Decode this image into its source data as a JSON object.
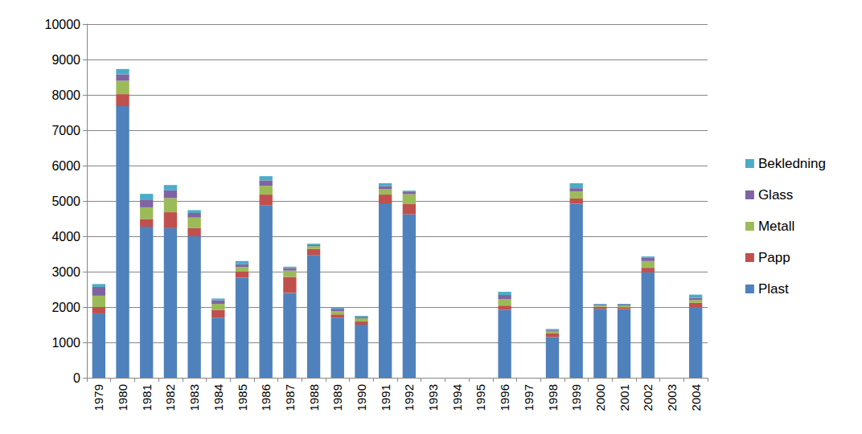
{
  "chart_data": {
    "type": "bar",
    "stacked": true,
    "grid": true,
    "legend": "right",
    "categories": [
      "1979",
      "1980",
      "1981",
      "1982",
      "1983",
      "1984",
      "1985",
      "1986",
      "1987",
      "1988",
      "1989",
      "1990",
      "1991",
      "1992",
      "1993",
      "1994",
      "1995",
      "1996",
      "1997",
      "1998",
      "1999",
      "2000",
      "2001",
      "2002",
      "2003",
      "2004"
    ],
    "ylim": [
      0,
      10000
    ],
    "yticks": [
      0,
      1000,
      2000,
      3000,
      4000,
      5000,
      6000,
      7000,
      8000,
      9000,
      10000
    ],
    "series": [
      {
        "name": "Plast",
        "color": "#4f81bd",
        "values": [
          1820,
          7680,
          4270,
          4230,
          4000,
          1700,
          2830,
          4880,
          2400,
          3470,
          1700,
          1500,
          4930,
          4620,
          null,
          null,
          null,
          1920,
          null,
          1150,
          4920,
          1950,
          1940,
          2980,
          null,
          1990
        ]
      },
      {
        "name": "Papp",
        "color": "#c0504d",
        "values": [
          180,
          340,
          220,
          450,
          230,
          220,
          170,
          300,
          450,
          170,
          90,
          90,
          250,
          290,
          null,
          null,
          null,
          120,
          null,
          100,
          150,
          60,
          50,
          130,
          null,
          130
        ]
      },
      {
        "name": "Metall",
        "color": "#9bbb59",
        "values": [
          320,
          380,
          330,
          400,
          300,
          170,
          130,
          250,
          180,
          80,
          90,
          90,
          160,
          280,
          null,
          null,
          null,
          180,
          null,
          70,
          200,
          40,
          50,
          190,
          null,
          80
        ]
      },
      {
        "name": "Glass",
        "color": "#8064a2",
        "values": [
          250,
          180,
          220,
          220,
          130,
          100,
          80,
          150,
          70,
          30,
          70,
          40,
          80,
          60,
          null,
          null,
          null,
          120,
          null,
          30,
          90,
          20,
          30,
          90,
          null,
          60
        ]
      },
      {
        "name": "Bekledning",
        "color": "#4bacc6",
        "values": [
          80,
          150,
          160,
          150,
          80,
          50,
          90,
          120,
          40,
          40,
          40,
          30,
          80,
          40,
          null,
          null,
          null,
          90,
          null,
          30,
          140,
          20,
          20,
          40,
          null,
          90
        ]
      }
    ]
  }
}
